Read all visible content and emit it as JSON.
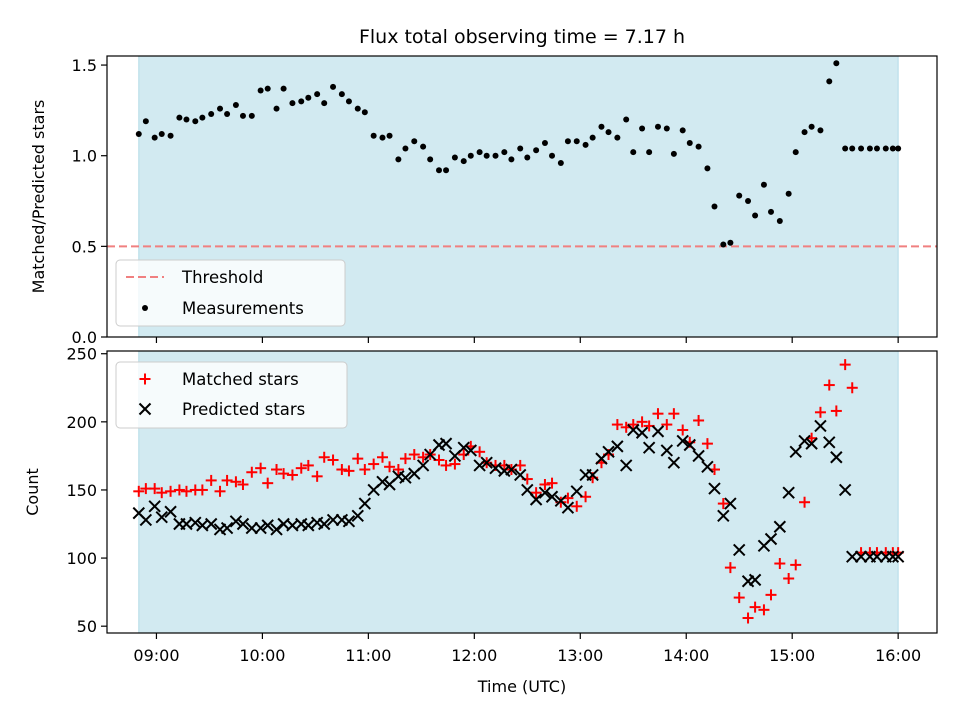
{
  "title": "Flux total observing time = 7.17 h",
  "colors": {
    "shade": "#add8e6",
    "threshold": "#f08080",
    "measurement": "#000000",
    "matched": "#ff0000",
    "predicted": "#000000"
  },
  "chart_data": [
    {
      "type": "scatter",
      "panel": "top",
      "ylabel": "Matched/Predicted stars",
      "xlabel": "",
      "xlim": [
        "08:32",
        "16:22"
      ],
      "ylim": [
        0,
        1.55
      ],
      "yticks": [
        0.0,
        0.5,
        1.0,
        1.5
      ],
      "ytick_labels": [
        "0.0",
        "0.5",
        "1.0",
        "1.5"
      ],
      "xticks": [
        "09:00",
        "10:00",
        "11:00",
        "12:00",
        "13:00",
        "14:00",
        "15:00",
        "16:00"
      ],
      "shaded_span": [
        "08:50",
        "16:00"
      ],
      "threshold": {
        "label": "Threshold",
        "value": 0.5
      },
      "legend": {
        "placement": "lower-left",
        "entries": [
          "Threshold",
          "Measurements"
        ]
      },
      "series": [
        {
          "name": "Measurements",
          "x": [
            "08:50",
            "08:54",
            "08:59",
            "09:03",
            "09:08",
            "09:13",
            "09:17",
            "09:22",
            "09:26",
            "09:31",
            "09:36",
            "09:40",
            "09:45",
            "09:49",
            "09:54",
            "09:59",
            "10:03",
            "10:08",
            "10:12",
            "10:17",
            "10:22",
            "10:26",
            "10:31",
            "10:35",
            "10:40",
            "10:45",
            "10:49",
            "10:54",
            "10:58",
            "11:03",
            "11:08",
            "11:12",
            "11:17",
            "11:21",
            "11:26",
            "11:31",
            "11:35",
            "11:40",
            "11:44",
            "11:49",
            "11:54",
            "11:58",
            "12:03",
            "12:07",
            "12:12",
            "12:17",
            "12:21",
            "12:26",
            "12:30",
            "12:35",
            "12:40",
            "12:44",
            "12:49",
            "12:53",
            "12:58",
            "13:03",
            "13:07",
            "13:12",
            "13:16",
            "13:21",
            "13:26",
            "13:30",
            "13:35",
            "13:39",
            "13:44",
            "13:49",
            "13:53",
            "13:58",
            "14:02",
            "14:07",
            "14:12",
            "14:16",
            "14:21",
            "14:25",
            "14:30",
            "14:35",
            "14:39",
            "14:44",
            "14:48",
            "14:53",
            "14:58",
            "15:02",
            "15:07",
            "15:11",
            "15:16",
            "15:21",
            "15:25",
            "15:30",
            "15:34",
            "15:39",
            "15:44",
            "15:48",
            "15:53",
            "15:57",
            "16:00"
          ],
          "y": [
            1.12,
            1.19,
            1.1,
            1.12,
            1.11,
            1.21,
            1.2,
            1.19,
            1.21,
            1.23,
            1.26,
            1.23,
            1.28,
            1.22,
            1.22,
            1.36,
            1.37,
            1.26,
            1.37,
            1.29,
            1.3,
            1.32,
            1.34,
            1.29,
            1.38,
            1.34,
            1.3,
            1.26,
            1.24,
            1.11,
            1.1,
            1.11,
            0.98,
            1.04,
            1.08,
            1.05,
            0.98,
            0.92,
            0.92,
            0.99,
            0.97,
            1.0,
            1.02,
            1.0,
            1.0,
            1.02,
            0.98,
            1.04,
            0.99,
            1.03,
            1.07,
            1.0,
            0.96,
            1.08,
            1.08,
            1.06,
            1.1,
            1.16,
            1.13,
            1.1,
            1.2,
            1.02,
            1.15,
            1.02,
            1.16,
            1.15,
            1.01,
            1.14,
            1.07,
            1.05,
            0.93,
            0.72,
            0.51,
            0.52,
            0.78,
            0.75,
            0.67,
            0.84,
            0.69,
            0.64,
            0.79,
            1.02,
            1.13,
            1.16,
            1.14,
            1.41,
            1.51,
            1.04,
            1.04,
            1.04,
            1.04,
            1.04,
            1.04,
            1.04,
            1.04
          ]
        }
      ]
    },
    {
      "type": "scatter",
      "panel": "bottom",
      "ylabel": "Count",
      "xlabel": "Time (UTC)",
      "xlim": [
        "08:32",
        "16:22"
      ],
      "ylim": [
        45,
        252
      ],
      "yticks": [
        50,
        100,
        150,
        200,
        250
      ],
      "ytick_labels": [
        "50",
        "100",
        "150",
        "200",
        "250"
      ],
      "xticks": [
        "09:00",
        "10:00",
        "11:00",
        "12:00",
        "13:00",
        "14:00",
        "15:00",
        "16:00"
      ],
      "xtick_labels": [
        "09:00",
        "10:00",
        "11:00",
        "12:00",
        "13:00",
        "14:00",
        "15:00",
        "16:00"
      ],
      "shaded_span": [
        "08:50",
        "16:00"
      ],
      "legend": {
        "placement": "upper-left",
        "entries": [
          "Matched stars",
          "Predicted stars"
        ]
      },
      "series": [
        {
          "name": "Matched stars",
          "x": [
            "08:50",
            "08:54",
            "08:59",
            "09:03",
            "09:08",
            "09:13",
            "09:17",
            "09:22",
            "09:26",
            "09:31",
            "09:36",
            "09:40",
            "09:45",
            "09:49",
            "09:54",
            "09:59",
            "10:03",
            "10:08",
            "10:12",
            "10:17",
            "10:22",
            "10:26",
            "10:31",
            "10:35",
            "10:40",
            "10:45",
            "10:49",
            "10:54",
            "10:58",
            "11:03",
            "11:08",
            "11:12",
            "11:17",
            "11:21",
            "11:26",
            "11:31",
            "11:35",
            "11:40",
            "11:44",
            "11:49",
            "11:54",
            "11:58",
            "12:03",
            "12:07",
            "12:12",
            "12:17",
            "12:21",
            "12:26",
            "12:30",
            "12:35",
            "12:40",
            "12:44",
            "12:49",
            "12:53",
            "12:58",
            "13:03",
            "13:07",
            "13:12",
            "13:16",
            "13:21",
            "13:26",
            "13:30",
            "13:35",
            "13:39",
            "13:44",
            "13:49",
            "13:53",
            "13:58",
            "14:02",
            "14:07",
            "14:12",
            "14:16",
            "14:21",
            "14:25",
            "14:30",
            "14:35",
            "14:39",
            "14:44",
            "14:48",
            "14:53",
            "14:58",
            "15:02",
            "15:07",
            "15:11",
            "15:16",
            "15:21",
            "15:25",
            "15:30",
            "15:34",
            "15:39",
            "15:44",
            "15:48",
            "15:53",
            "15:57",
            "16:00"
          ],
          "y": [
            149,
            151,
            151,
            148,
            149,
            150,
            149,
            150,
            150,
            157,
            149,
            157,
            156,
            154,
            163,
            166,
            155,
            165,
            162,
            161,
            166,
            168,
            160,
            174,
            172,
            165,
            164,
            173,
            165,
            169,
            174,
            167,
            165,
            173,
            176,
            174,
            176,
            172,
            168,
            169,
            176,
            182,
            178,
            170,
            168,
            168,
            165,
            168,
            158,
            148,
            154,
            155,
            141,
            144,
            138,
            145,
            159,
            170,
            176,
            198,
            196,
            198,
            200,
            197,
            206,
            198,
            206,
            194,
            185,
            201,
            184,
            165,
            140,
            93,
            71,
            56,
            64,
            62,
            73,
            96,
            85,
            95,
            141,
            188,
            207,
            227,
            208,
            242,
            225,
            104,
            104,
            104,
            104,
            104,
            104
          ]
        },
        {
          "name": "Predicted stars",
          "x": [
            "08:50",
            "08:54",
            "08:59",
            "09:03",
            "09:08",
            "09:13",
            "09:17",
            "09:22",
            "09:26",
            "09:31",
            "09:36",
            "09:40",
            "09:45",
            "09:49",
            "09:54",
            "09:59",
            "10:03",
            "10:08",
            "10:12",
            "10:17",
            "10:22",
            "10:26",
            "10:31",
            "10:35",
            "10:40",
            "10:45",
            "10:49",
            "10:54",
            "10:58",
            "11:03",
            "11:08",
            "11:12",
            "11:17",
            "11:21",
            "11:26",
            "11:31",
            "11:35",
            "11:40",
            "11:44",
            "11:49",
            "11:54",
            "11:58",
            "12:03",
            "12:07",
            "12:12",
            "12:17",
            "12:21",
            "12:26",
            "12:30",
            "12:35",
            "12:40",
            "12:44",
            "12:49",
            "12:53",
            "12:58",
            "13:03",
            "13:07",
            "13:12",
            "13:16",
            "13:21",
            "13:26",
            "13:30",
            "13:35",
            "13:39",
            "13:44",
            "13:49",
            "13:53",
            "13:58",
            "14:02",
            "14:07",
            "14:12",
            "14:16",
            "14:21",
            "14:25",
            "14:30",
            "14:35",
            "14:39",
            "14:44",
            "14:48",
            "14:53",
            "14:58",
            "15:02",
            "15:07",
            "15:11",
            "15:16",
            "15:21",
            "15:25",
            "15:30",
            "15:34",
            "15:39",
            "15:44",
            "15:48",
            "15:53",
            "15:57",
            "16:00"
          ],
          "y": [
            133,
            128,
            138,
            130,
            134,
            125,
            125,
            126,
            124,
            125,
            121,
            122,
            127,
            125,
            122,
            122,
            124,
            121,
            125,
            124,
            125,
            124,
            126,
            125,
            128,
            128,
            127,
            131,
            140,
            150,
            156,
            154,
            160,
            159,
            162,
            168,
            176,
            183,
            184,
            175,
            181,
            179,
            168,
            170,
            166,
            164,
            165,
            161,
            150,
            143,
            148,
            145,
            142,
            137,
            149,
            161,
            161,
            173,
            178,
            182,
            168,
            194,
            192,
            181,
            193,
            179,
            170,
            186,
            183,
            175,
            167,
            151,
            131,
            140,
            106,
            83,
            84,
            109,
            114,
            123,
            148,
            178,
            186,
            184,
            197,
            185,
            174,
            150,
            101,
            101,
            101,
            101,
            101,
            101,
            101
          ]
        }
      ]
    }
  ]
}
